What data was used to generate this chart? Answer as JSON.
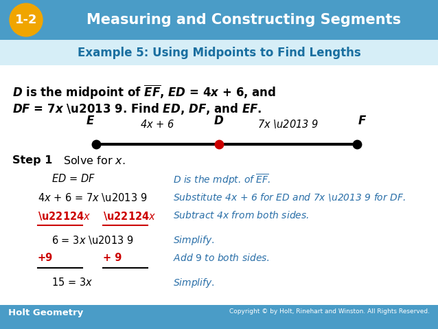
{
  "bg_color": "#ffffff",
  "header_bg": "#4a9cc7",
  "header_text": "Measuring and Constructing Segments",
  "header_badge": "1-2",
  "header_badge_bg": "#f0a500",
  "subheader_text": "Example 5: Using Midpoints to Find Lengths",
  "subheader_color": "#1a6fa0",
  "footer_left": "Holt Geometry",
  "footer_right": "Copyright © by Holt, Rinehart and Winston. All Rights Reserved.",
  "footer_bg": "#4a9cc7",
  "red_color": "#cc0000",
  "blue_color": "#2a6fa8",
  "black_color": "#111111"
}
